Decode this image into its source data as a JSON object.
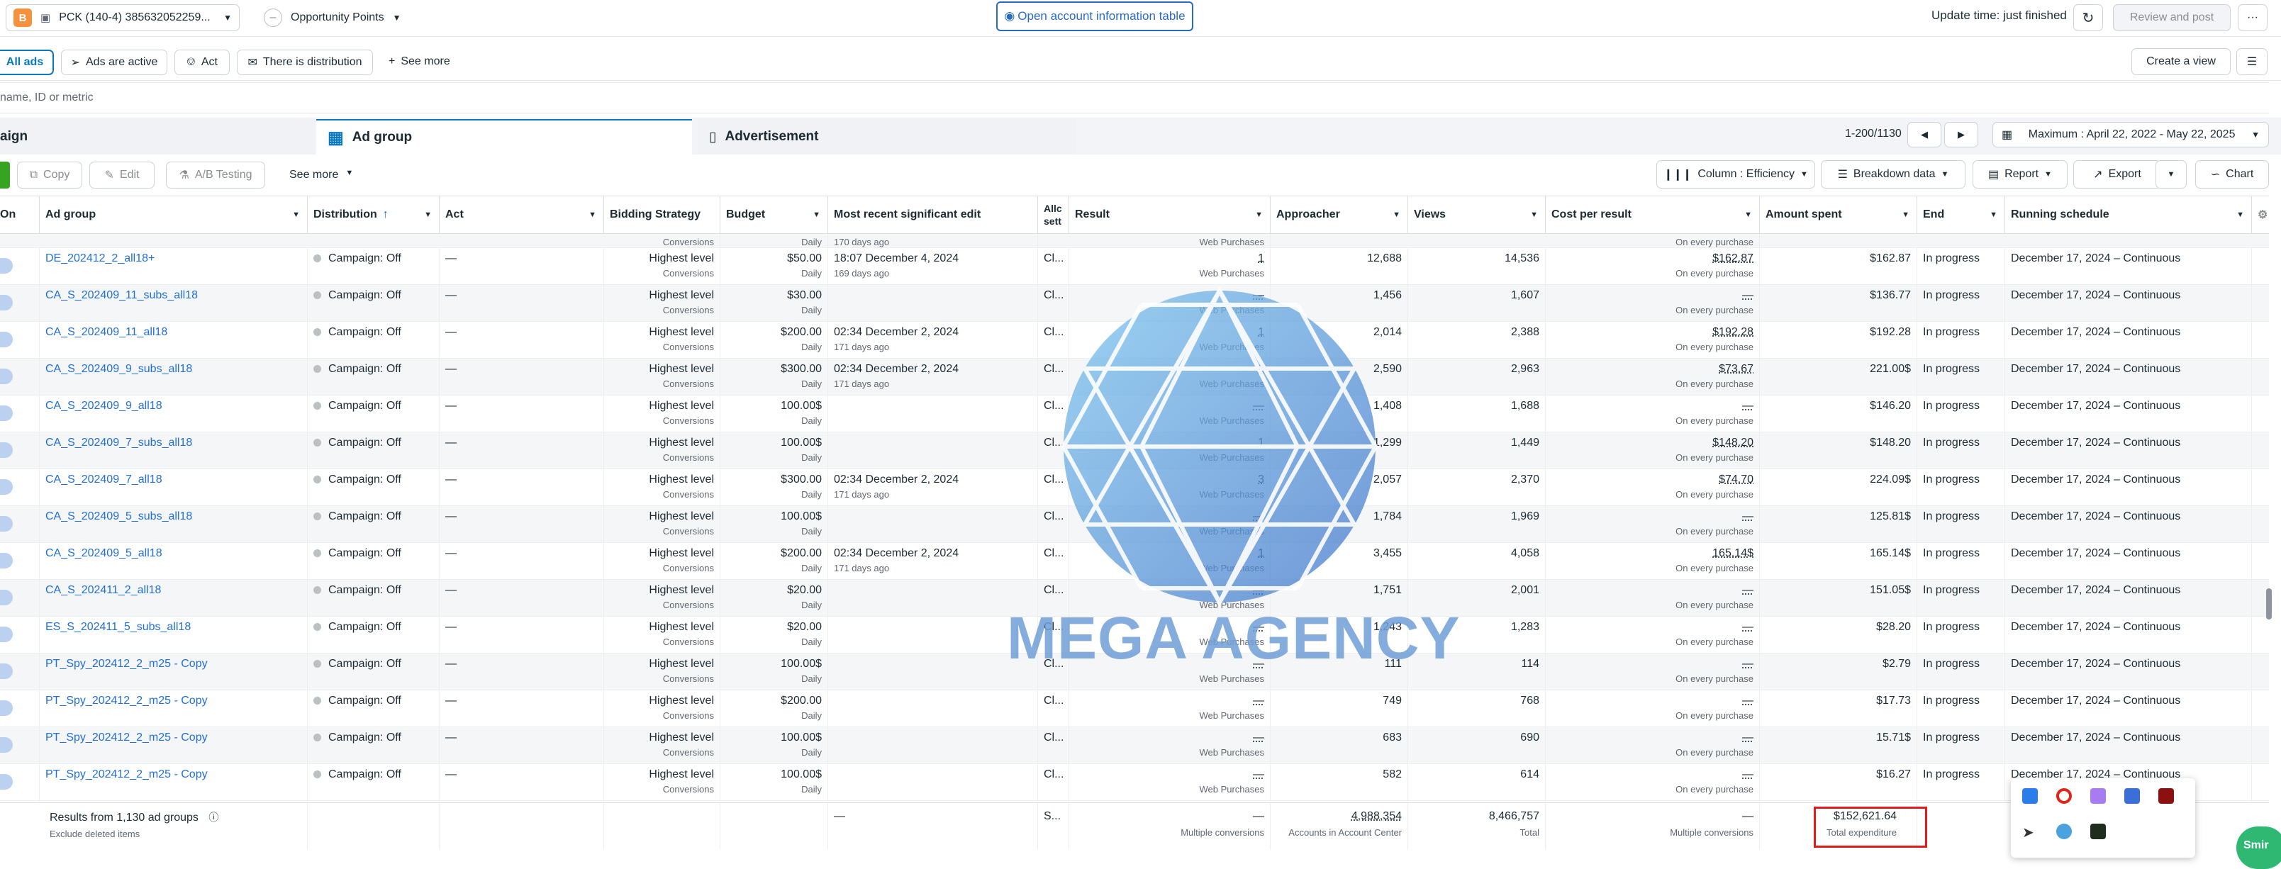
{
  "topbar": {
    "badge": "B",
    "account": "PCK (140-4) 385632052259...",
    "opportunity": "Opportunity Points",
    "open_account_table": "Open account information table",
    "update_time": "Update time: just finished",
    "review_post": "Review and post",
    "more": "···"
  },
  "filters": {
    "all_ads": "All ads",
    "ads_active": "Ads are active",
    "act": "Act",
    "distribution": "There is distribution",
    "see_more": "See more",
    "create_view": "Create a view"
  },
  "search": {
    "placeholder": "name, ID or metric"
  },
  "levels": {
    "campaign": "aign",
    "ad_group": "Ad group",
    "advertisement": "Advertisement",
    "pagination": "1-200/1130",
    "date_range": "Maximum : April 22, 2022 - May 22, 2025"
  },
  "toolbar": {
    "copy": "Copy",
    "edit": "Edit",
    "ab": "A/B Testing",
    "see_more": "See more",
    "column": "Column : Efficiency",
    "breakdown": "Breakdown data",
    "report": "Report",
    "export": "Export",
    "chart": "Chart"
  },
  "columns": {
    "on": "On",
    "ad_group": "Ad group",
    "distribution": "Distribution",
    "act": "Act",
    "bidding": "Bidding Strategy",
    "budget": "Budget",
    "edit": "Most recent significant edit",
    "attr": "Allc sett",
    "result": "Result",
    "approacher": "Approacher",
    "views": "Views",
    "cpr": "Cost per result",
    "spent": "Amount spent",
    "end": "End",
    "schedule": "Running schedule"
  },
  "partial_row": {
    "bid_sub": "Conversions",
    "budget_sub": "Daily",
    "edit_sub": "170 days ago",
    "result_sub": "Web Purchases",
    "cpr_sub": "On every purchase"
  },
  "rows": [
    {
      "name": "DE_202412_2_all18+",
      "dist": "Campaign: Off",
      "act": "—",
      "bid": "Highest level",
      "bid_sub": "Conversions",
      "budget": "$50.00",
      "budget_sub": "Daily",
      "edit": "18:07 December 4, 2024",
      "edit_sub": "169 days ago",
      "attr": "Cl...",
      "result": "1",
      "result_sub": "Web Purchases",
      "reach": "12,688",
      "views": "14,536",
      "cpr": "$162.87",
      "cpr_sub": "On every purchase",
      "spent": "$162.87",
      "end": "In progress",
      "sched": "December 17, 2024 – Continuous"
    },
    {
      "name": "CA_S_202409_11_subs_all18",
      "dist": "Campaign: Off",
      "act": "—",
      "bid": "Highest level",
      "bid_sub": "Conversions",
      "budget": "$30.00",
      "budget_sub": "Daily",
      "edit": "",
      "edit_sub": "",
      "attr": "Cl...",
      "result": "—",
      "result_sub": "Web Purchases",
      "reach": "1,456",
      "views": "1,607",
      "cpr": "—",
      "cpr_sub": "On every purchase",
      "spent": "$136.77",
      "end": "In progress",
      "sched": "December 17, 2024 – Continuous"
    },
    {
      "name": "CA_S_202409_11_all18",
      "dist": "Campaign: Off",
      "act": "—",
      "bid": "Highest level",
      "bid_sub": "Conversions",
      "budget": "$200.00",
      "budget_sub": "Daily",
      "edit": "02:34 December 2, 2024",
      "edit_sub": "171 days ago",
      "attr": "Cl...",
      "result": "1",
      "result_sub": "Web Purchases",
      "reach": "2,014",
      "views": "2,388",
      "cpr": "$192.28",
      "cpr_sub": "On every purchase",
      "spent": "$192.28",
      "end": "In progress",
      "sched": "December 17, 2024 – Continuous"
    },
    {
      "name": "CA_S_202409_9_subs_all18",
      "dist": "Campaign: Off",
      "act": "—",
      "bid": "Highest level",
      "bid_sub": "Conversions",
      "budget": "$300.00",
      "budget_sub": "Daily",
      "edit": "02:34 December 2, 2024",
      "edit_sub": "171 days ago",
      "attr": "Cl...",
      "result": "3",
      "result_sub": "Web Purchases",
      "reach": "2,590",
      "views": "2,963",
      "cpr": "$73.67",
      "cpr_sub": "On every purchase",
      "spent": "221.00$",
      "end": "In progress",
      "sched": "December 17, 2024 – Continuous"
    },
    {
      "name": "CA_S_202409_9_all18",
      "dist": "Campaign: Off",
      "act": "—",
      "bid": "Highest level",
      "bid_sub": "Conversions",
      "budget": "100.00$",
      "budget_sub": "Daily",
      "edit": "",
      "edit_sub": "",
      "attr": "Cl...",
      "result": "—",
      "result_sub": "Web Purchases",
      "reach": "1,408",
      "views": "1,688",
      "cpr": "—",
      "cpr_sub": "On every purchase",
      "spent": "$146.20",
      "end": "In progress",
      "sched": "December 17, 2024 – Continuous"
    },
    {
      "name": "CA_S_202409_7_subs_all18",
      "dist": "Campaign: Off",
      "act": "—",
      "bid": "Highest level",
      "bid_sub": "Conversions",
      "budget": "100.00$",
      "budget_sub": "Daily",
      "edit": "",
      "edit_sub": "",
      "attr": "Cl...",
      "result": "1",
      "result_sub": "Web Purchases",
      "reach": "1,299",
      "views": "1,449",
      "cpr": "$148.20",
      "cpr_sub": "On every purchase",
      "spent": "$148.20",
      "end": "In progress",
      "sched": "December 17, 2024 – Continuous"
    },
    {
      "name": "CA_S_202409_7_all18",
      "dist": "Campaign: Off",
      "act": "—",
      "bid": "Highest level",
      "bid_sub": "Conversions",
      "budget": "$300.00",
      "budget_sub": "Daily",
      "edit": "02:34 December 2, 2024",
      "edit_sub": "171 days ago",
      "attr": "Cl...",
      "result": "3",
      "result_sub": "Web Purchases",
      "reach": "2,057",
      "views": "2,370",
      "cpr": "$74.70",
      "cpr_sub": "On every purchase",
      "spent": "224.09$",
      "end": "In progress",
      "sched": "December 17, 2024 – Continuous"
    },
    {
      "name": "CA_S_202409_5_subs_all18",
      "dist": "Campaign: Off",
      "act": "—",
      "bid": "Highest level",
      "bid_sub": "Conversions",
      "budget": "100.00$",
      "budget_sub": "Daily",
      "edit": "",
      "edit_sub": "",
      "attr": "Cl...",
      "result": "—",
      "result_sub": "Web Purchases",
      "reach": "1,784",
      "views": "1,969",
      "cpr": "—",
      "cpr_sub": "On every purchase",
      "spent": "125.81$",
      "end": "In progress",
      "sched": "December 17, 2024 – Continuous"
    },
    {
      "name": "CA_S_202409_5_all18",
      "dist": "Campaign: Off",
      "act": "—",
      "bid": "Highest level",
      "bid_sub": "Conversions",
      "budget": "$200.00",
      "budget_sub": "Daily",
      "edit": "02:34 December 2, 2024",
      "edit_sub": "171 days ago",
      "attr": "Cl...",
      "result": "1",
      "result_sub": "Web Purchases",
      "reach": "3,455",
      "views": "4,058",
      "cpr": "165.14$",
      "cpr_sub": "On every purchase",
      "spent": "165.14$",
      "end": "In progress",
      "sched": "December 17, 2024 – Continuous"
    },
    {
      "name": "CA_S_202411_2_all18",
      "dist": "Campaign: Off",
      "act": "—",
      "bid": "Highest level",
      "bid_sub": "Conversions",
      "budget": "$20.00",
      "budget_sub": "Daily",
      "edit": "",
      "edit_sub": "",
      "attr": "Cl...",
      "result": "—",
      "result_sub": "Web Purchases",
      "reach": "1,751",
      "views": "2,001",
      "cpr": "—",
      "cpr_sub": "On every purchase",
      "spent": "151.05$",
      "end": "In progress",
      "sched": "December 17, 2024 – Continuous"
    },
    {
      "name": "ES_S_202411_5_subs_all18",
      "dist": "Campaign: Off",
      "act": "—",
      "bid": "Highest level",
      "bid_sub": "Conversions",
      "budget": "$20.00",
      "budget_sub": "Daily",
      "edit": "",
      "edit_sub": "",
      "attr": "Cl...",
      "result": "—",
      "result_sub": "Web Purchases",
      "reach": "1,243",
      "views": "1,283",
      "cpr": "—",
      "cpr_sub": "On every purchase",
      "spent": "$28.20",
      "end": "In progress",
      "sched": "December 17, 2024 – Continuous"
    },
    {
      "name": "PT_Spy_202412_2_m25 - Copy",
      "dist": "Campaign: Off",
      "act": "—",
      "bid": "Highest level",
      "bid_sub": "Conversions",
      "budget": "100.00$",
      "budget_sub": "Daily",
      "edit": "",
      "edit_sub": "",
      "attr": "Cl...",
      "result": "—",
      "result_sub": "Web Purchases",
      "reach": "111",
      "views": "114",
      "cpr": "—",
      "cpr_sub": "On every purchase",
      "spent": "$2.79",
      "end": "In progress",
      "sched": "December 17, 2024 – Continuous"
    },
    {
      "name": "PT_Spy_202412_2_m25 - Copy",
      "dist": "Campaign: Off",
      "act": "—",
      "bid": "Highest level",
      "bid_sub": "Conversions",
      "budget": "$200.00",
      "budget_sub": "Daily",
      "edit": "",
      "edit_sub": "",
      "attr": "Cl...",
      "result": "—",
      "result_sub": "Web Purchases",
      "reach": "749",
      "views": "768",
      "cpr": "—",
      "cpr_sub": "On every purchase",
      "spent": "$17.73",
      "end": "In progress",
      "sched": "December 17, 2024 – Continuous"
    },
    {
      "name": "PT_Spy_202412_2_m25 - Copy",
      "dist": "Campaign: Off",
      "act": "—",
      "bid": "Highest level",
      "bid_sub": "Conversions",
      "budget": "100.00$",
      "budget_sub": "Daily",
      "edit": "",
      "edit_sub": "",
      "attr": "Cl...",
      "result": "—",
      "result_sub": "Web Purchases",
      "reach": "683",
      "views": "690",
      "cpr": "—",
      "cpr_sub": "On every purchase",
      "spent": "15.71$",
      "end": "In progress",
      "sched": "December 17, 2024 – Continuous"
    },
    {
      "name": "PT_Spy_202412_2_m25 - Copy",
      "dist": "Campaign: Off",
      "act": "—",
      "bid": "Highest level",
      "bid_sub": "Conversions",
      "budget": "100.00$",
      "budget_sub": "Daily",
      "edit": "",
      "edit_sub": "",
      "attr": "Cl...",
      "result": "—",
      "result_sub": "Web Purchases",
      "reach": "582",
      "views": "614",
      "cpr": "—",
      "cpr_sub": "On every purchase",
      "spent": "$16.27",
      "end": "In progress",
      "sched": "December 17, 2024 – Continuous"
    }
  ],
  "footer": {
    "results": "Results from 1,130 ad groups",
    "exclude": "Exclude deleted items",
    "edit": "—",
    "attr": "S...",
    "result": "—",
    "result_sub": "Multiple conversions",
    "reach": "4,988,354",
    "reach_sub": "Accounts in Account Center",
    "views": "8,466,757",
    "views_sub": "Total",
    "cpr": "—",
    "cpr_sub": "Multiple conversions",
    "spent": "$152,621.64",
    "spent_sub": "Total expenditure"
  },
  "watermark": "MEGA AGENCY",
  "corner_badge": "Smir",
  "colors": {
    "link": "#216fdb",
    "accent": "#0a78be",
    "highlight_box": "#e01c1c"
  }
}
